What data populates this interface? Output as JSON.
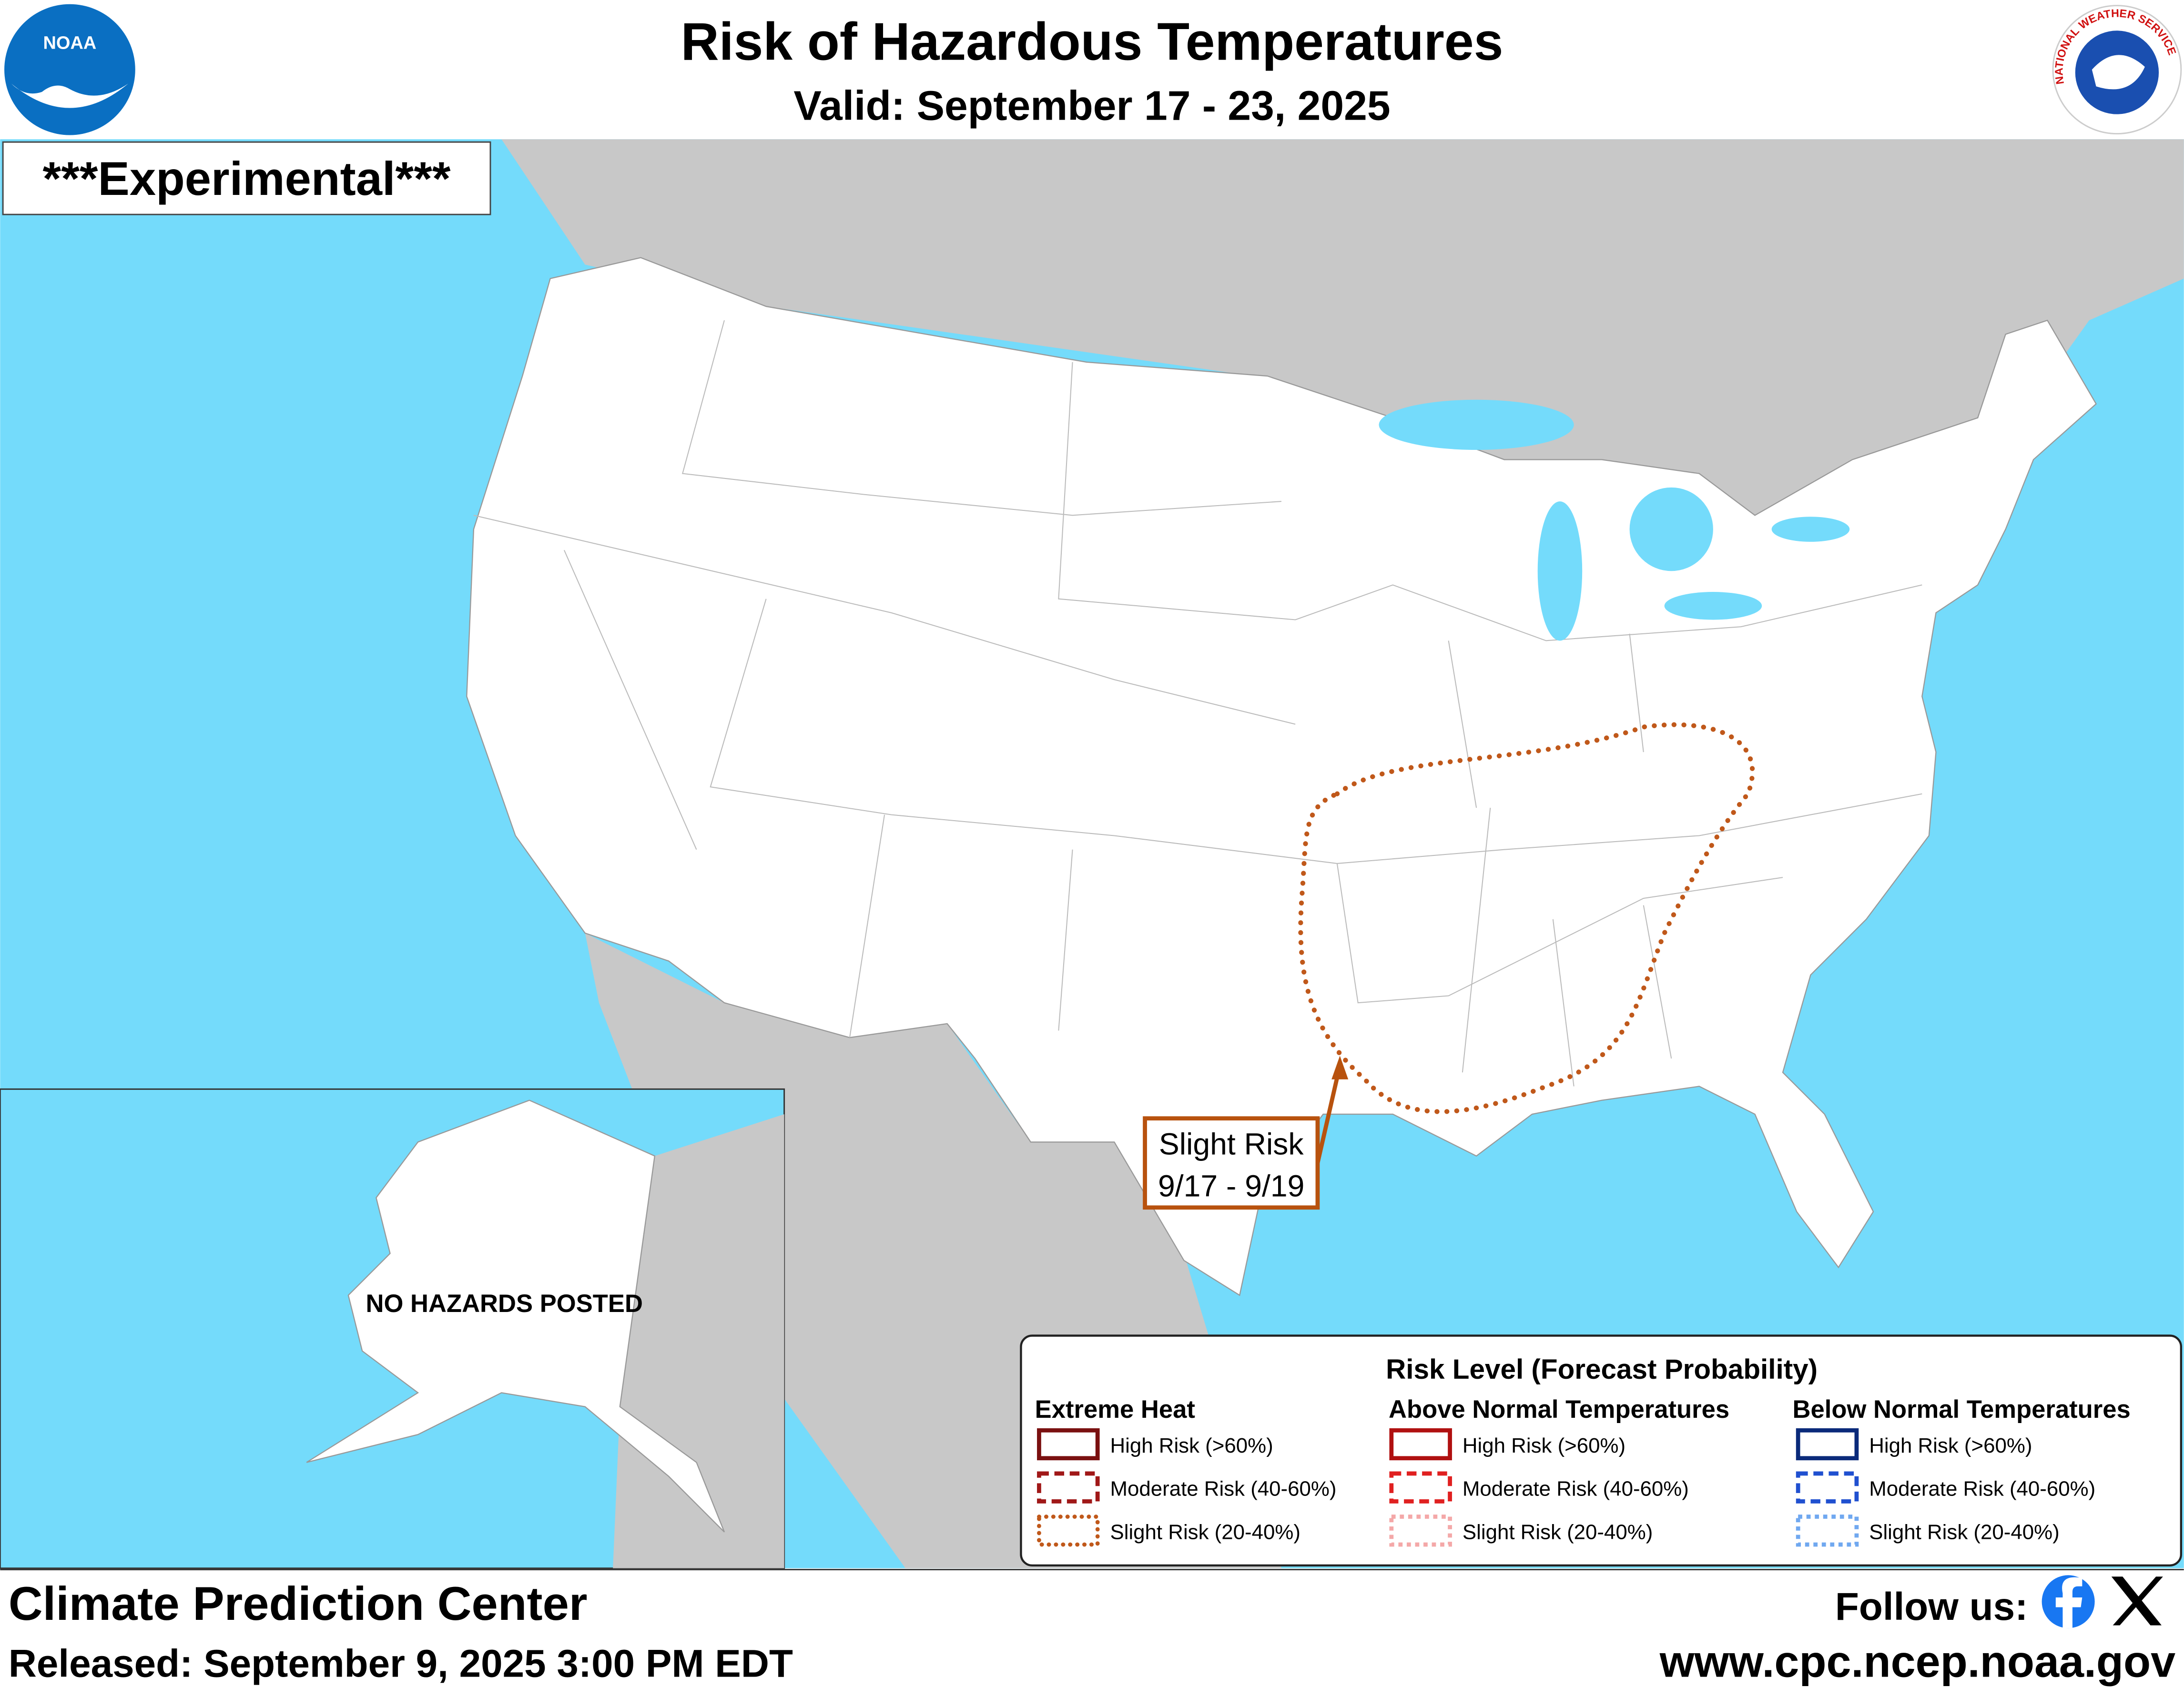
{
  "header": {
    "title": "Risk of Hazardous Temperatures",
    "subtitle": "Valid: September 17 - 23, 2025",
    "badge": "***Experimental***"
  },
  "logos": {
    "noaa": "NOAA",
    "nws": "NATIONAL WEATHER SERVICE"
  },
  "map": {
    "alaska_note": "NO HAZARDS POSTED",
    "callout": [
      "Slight Risk",
      "9/17 - 9/19"
    ]
  },
  "legend": {
    "title": "Risk Level (Forecast Probability)",
    "groups": [
      {
        "name": "Extreme Heat",
        "items": [
          "High Risk (>60%)",
          "Moderate Risk (40-60%)",
          "Slight Risk (20-40%)"
        ]
      },
      {
        "name": "Above Normal Temperatures",
        "items": [
          "High Risk (>60%)",
          "Moderate Risk (40-60%)",
          "Slight Risk (20-40%)"
        ]
      },
      {
        "name": "Below Normal Temperatures",
        "items": [
          "High Risk (>60%)",
          "Moderate Risk (40-60%)",
          "Slight Risk (20-40%)"
        ]
      }
    ]
  },
  "footer": {
    "center": "Climate Prediction Center",
    "released": "Released: September 9, 2025 3:00 PM EDT",
    "follow": "Follow us:",
    "url": "www.cpc.ncep.noaa.gov"
  }
}
